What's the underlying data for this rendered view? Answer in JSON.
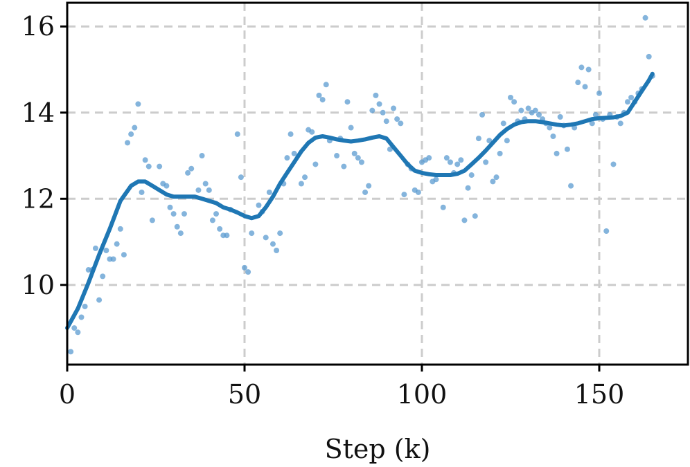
{
  "chart_data": {
    "type": "scatter",
    "xlabel": "Step (k)",
    "ylabel": "",
    "xlim": [
      0,
      175
    ],
    "ylim": [
      8.15,
      16.55
    ],
    "xticks": [
      0,
      50,
      100,
      150
    ],
    "yticks": [
      10,
      12,
      14,
      16
    ],
    "xtick_labels": [
      "0",
      "50",
      "100",
      "150"
    ],
    "ytick_labels": [
      "10",
      "12",
      "14",
      "16"
    ],
    "grid": true,
    "colors": {
      "points": "#5b9bd0",
      "line": "#1f77b4",
      "grid": "#cccccc"
    },
    "series": [
      {
        "kind": "scatter",
        "x": [
          1,
          2,
          3,
          4,
          5,
          6,
          7,
          8,
          9,
          10,
          11,
          12,
          13,
          14,
          15,
          16,
          17,
          18,
          19,
          20,
          21,
          22,
          23,
          24,
          26,
          27,
          28,
          29,
          30,
          31,
          32,
          33,
          34,
          35,
          37,
          38,
          39,
          40,
          41,
          42,
          43,
          44,
          45,
          46,
          48,
          49,
          50,
          51,
          52,
          54,
          55,
          56,
          57,
          58,
          59,
          60,
          61,
          62,
          63,
          64,
          66,
          67,
          68,
          69,
          70,
          71,
          72,
          73,
          74,
          76,
          77,
          78,
          79,
          80,
          81,
          82,
          83,
          84,
          85,
          86,
          87,
          88,
          89,
          90,
          91,
          92,
          93,
          94,
          95,
          96,
          97,
          98,
          99,
          100,
          101,
          102,
          103,
          104,
          106,
          107,
          108,
          109,
          110,
          111,
          112,
          113,
          114,
          115,
          116,
          117,
          118,
          119,
          120,
          121,
          122,
          123,
          124,
          125,
          126,
          127,
          128,
          129,
          130,
          131,
          132,
          133,
          134,
          135,
          136,
          137,
          138,
          139,
          140,
          141,
          142,
          143,
          144,
          145,
          146,
          147,
          148,
          149,
          150,
          151,
          152,
          153,
          154,
          155,
          156,
          157,
          158,
          159,
          160,
          161,
          162,
          163,
          164,
          165
        ],
        "y": [
          8.45,
          9.0,
          8.9,
          9.25,
          9.5,
          10.35,
          10.35,
          10.85,
          9.65,
          10.2,
          10.8,
          10.6,
          10.6,
          10.95,
          11.3,
          10.7,
          13.3,
          13.5,
          13.65,
          14.2,
          12.15,
          12.9,
          12.75,
          11.5,
          12.75,
          12.35,
          12.3,
          11.8,
          11.65,
          11.35,
          11.2,
          11.65,
          12.6,
          12.7,
          12.2,
          13.0,
          12.35,
          12.2,
          11.5,
          11.65,
          11.3,
          11.15,
          11.15,
          11.75,
          13.5,
          12.5,
          10.4,
          10.3,
          11.2,
          11.85,
          11.7,
          11.1,
          12.15,
          10.95,
          10.8,
          11.2,
          12.35,
          12.95,
          13.5,
          13.05,
          12.35,
          12.5,
          13.6,
          13.55,
          12.8,
          14.4,
          14.3,
          14.65,
          13.35,
          13.0,
          13.4,
          12.75,
          14.25,
          13.65,
          13.05,
          12.95,
          12.85,
          12.15,
          12.3,
          14.05,
          14.4,
          14.2,
          14.0,
          13.8,
          13.15,
          14.1,
          13.85,
          13.75,
          12.1,
          12.8,
          12.7,
          12.2,
          12.15,
          12.85,
          12.9,
          12.95,
          12.4,
          12.45,
          11.8,
          12.95,
          12.85,
          12.6,
          12.8,
          12.9,
          11.5,
          12.25,
          12.55,
          11.6,
          13.4,
          13.95,
          12.85,
          13.35,
          12.4,
          12.5,
          13.05,
          13.75,
          13.35,
          14.35,
          14.25,
          13.8,
          14.05,
          13.85,
          14.1,
          14.0,
          14.05,
          13.95,
          13.85,
          13.75,
          13.65,
          13.45,
          13.05,
          13.9,
          13.7,
          13.15,
          12.3,
          13.65,
          14.7,
          15.05,
          14.6,
          15.0,
          13.75,
          13.95,
          14.45,
          13.85,
          11.25,
          13.95,
          12.8,
          13.9,
          13.75,
          14.0,
          14.25,
          14.35,
          14.25,
          14.45,
          14.55,
          16.2,
          15.3,
          14.85
        ]
      },
      {
        "kind": "line",
        "x": [
          0,
          3,
          6,
          9,
          12,
          15,
          18,
          20,
          22,
          24,
          26,
          28,
          30,
          32,
          34,
          36,
          38,
          40,
          42,
          44,
          46,
          48,
          50,
          52,
          54,
          56,
          58,
          60,
          62,
          64,
          66,
          68,
          70,
          72,
          74,
          76,
          78,
          80,
          82,
          84,
          86,
          88,
          90,
          92,
          94,
          96,
          98,
          100,
          102,
          104,
          106,
          108,
          110,
          112,
          114,
          116,
          118,
          120,
          122,
          124,
          126,
          128,
          130,
          132,
          134,
          136,
          138,
          140,
          142,
          144,
          146,
          148,
          150,
          152,
          154,
          156,
          158,
          160,
          162,
          164,
          165
        ],
        "y": [
          9.0,
          9.45,
          10.05,
          10.7,
          11.3,
          11.95,
          12.3,
          12.4,
          12.4,
          12.3,
          12.2,
          12.1,
          12.05,
          12.05,
          12.05,
          12.05,
          12.0,
          11.95,
          11.9,
          11.8,
          11.75,
          11.68,
          11.6,
          11.55,
          11.6,
          11.8,
          12.05,
          12.35,
          12.6,
          12.85,
          13.1,
          13.3,
          13.42,
          13.45,
          13.42,
          13.38,
          13.35,
          13.33,
          13.35,
          13.38,
          13.42,
          13.45,
          13.4,
          13.2,
          13.0,
          12.8,
          12.65,
          12.6,
          12.57,
          12.55,
          12.55,
          12.55,
          12.58,
          12.65,
          12.8,
          12.95,
          13.12,
          13.3,
          13.48,
          13.62,
          13.72,
          13.78,
          13.8,
          13.8,
          13.78,
          13.75,
          13.72,
          13.7,
          13.72,
          13.75,
          13.8,
          13.85,
          13.87,
          13.88,
          13.89,
          13.92,
          14.0,
          14.25,
          14.5,
          14.75,
          14.9
        ]
      }
    ]
  }
}
